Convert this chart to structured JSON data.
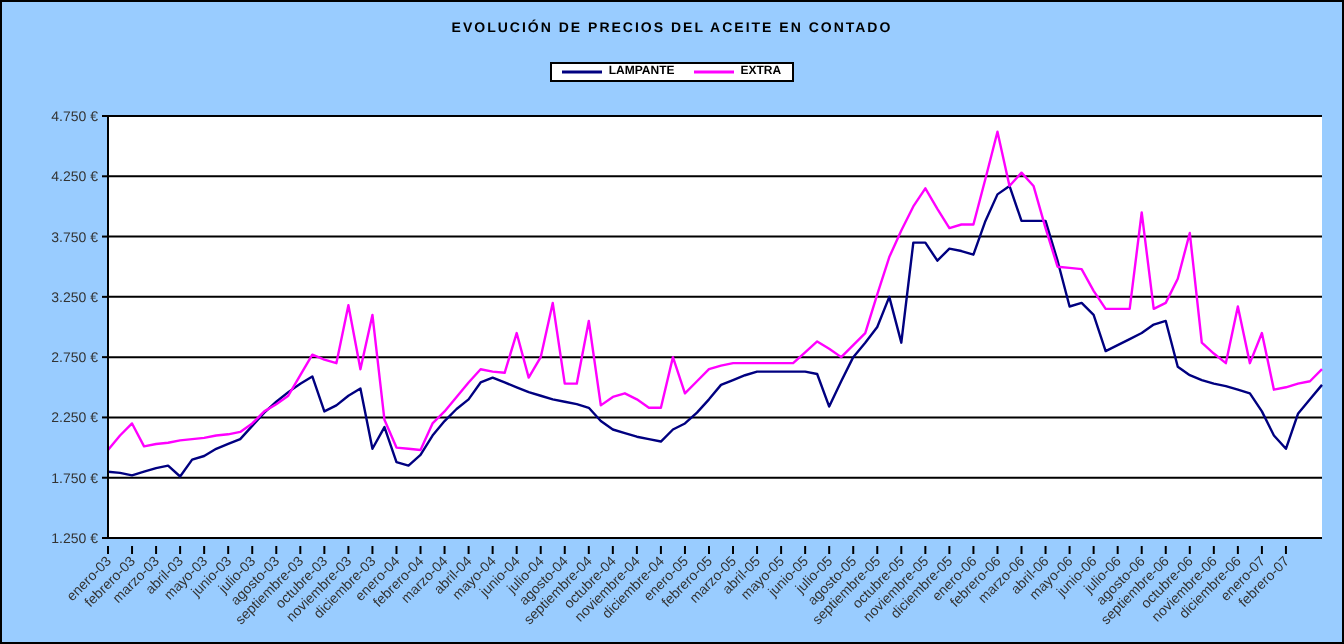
{
  "chart_data": {
    "type": "line",
    "title": "EVOLUCIÓN DE PRECIOS  DEL ACEITE EN CONTADO",
    "categories": [
      "enero-03",
      null,
      "febrero-03",
      null,
      "marzo-03",
      null,
      "abril-03",
      null,
      "mayo-03",
      null,
      "junio-03",
      null,
      "julio-03",
      null,
      "agosto-03",
      null,
      "septiembre-03",
      null,
      "octubre-03",
      null,
      "noviembre-03",
      null,
      "diciembre-03",
      null,
      "enero-04",
      null,
      "febrero-04",
      null,
      "marzo-04",
      null,
      "abril-04",
      null,
      "mayo-04",
      null,
      "junio-04",
      null,
      "julio-04",
      null,
      "agosto-04",
      null,
      "septiembre-04",
      null,
      "octubre-04",
      null,
      "noviembre-04",
      null,
      "diciembre-04",
      null,
      "enero-05",
      null,
      "febrero-05",
      null,
      "marzo-05",
      null,
      "abril-05",
      null,
      "mayo-05",
      null,
      "junio-05",
      null,
      "julio-05",
      null,
      "agosto-05",
      null,
      "septiembre-05",
      null,
      "octubre-05",
      null,
      "noviembre-05",
      null,
      "diciembre-05",
      null,
      "enero-06",
      null,
      "febrero-06",
      null,
      "marzo-06",
      null,
      "abril-06",
      null,
      "mayo-06",
      null,
      "junio-06",
      null,
      "julio-06",
      null,
      "agosto-06",
      null,
      "septiembre-06",
      null,
      "octubre-06",
      null,
      "noviembre-06",
      null,
      "diciembre-06",
      null,
      "enero-07",
      null,
      "febrero-07",
      null,
      null,
      null
    ],
    "ylim": [
      1250,
      4750
    ],
    "yticks": [
      {
        "value": 1250,
        "label": "1.250 €"
      },
      {
        "value": 1750,
        "label": "1.750 €"
      },
      {
        "value": 2250,
        "label": "2.250 €"
      },
      {
        "value": 2750,
        "label": "2.750 €"
      },
      {
        "value": 3250,
        "label": "3.250 €"
      },
      {
        "value": 3750,
        "label": "3.750 €"
      },
      {
        "value": 4250,
        "label": "4.250 €"
      },
      {
        "value": 4750,
        "label": "4.750 €"
      }
    ],
    "grid": "y",
    "legend": "top",
    "marker": "none",
    "line_style": "solid",
    "series": [
      {
        "name": "LAMPANTE",
        "color": "#000080",
        "values": [
          1800,
          1790,
          1770,
          1800,
          1830,
          1850,
          1760,
          1900,
          1930,
          1990,
          2030,
          2070,
          2180,
          2290,
          2380,
          2460,
          2530,
          2590,
          2300,
          2350,
          2430,
          2490,
          1990,
          2170,
          1880,
          1850,
          1940,
          2100,
          2220,
          2320,
          2400,
          2540,
          2580,
          2540,
          2500,
          2460,
          2430,
          2400,
          2380,
          2360,
          2330,
          2220,
          2150,
          2120,
          2090,
          2070,
          2050,
          2150,
          2200,
          2290,
          2400,
          2520,
          2560,
          2600,
          2630,
          2630,
          2630,
          2630,
          2630,
          2610,
          2340,
          2550,
          2750,
          2870,
          3000,
          3250,
          2870,
          3700,
          3700,
          3550,
          3650,
          3630,
          3600,
          3880,
          4100,
          4170,
          3880,
          3880,
          3880,
          3550,
          3170,
          3200,
          3100,
          2800,
          2850,
          2900,
          2950,
          3020,
          3050,
          2670,
          2600,
          2560,
          2530,
          2510,
          2480,
          2450,
          2300,
          2100,
          1990,
          2280,
          2400,
          2520
        ]
      },
      {
        "name": "EXTRA",
        "color": "#ff00ff",
        "values": [
          1980,
          2100,
          2200,
          2010,
          2030,
          2040,
          2060,
          2070,
          2080,
          2100,
          2110,
          2130,
          2200,
          2300,
          2360,
          2430,
          2600,
          2770,
          2730,
          2700,
          3180,
          2650,
          3100,
          2230,
          2000,
          1990,
          1980,
          2200,
          2300,
          2420,
          2540,
          2650,
          2630,
          2620,
          2950,
          2580,
          2750,
          3200,
          2530,
          2530,
          3050,
          2350,
          2420,
          2450,
          2400,
          2330,
          2330,
          2750,
          2450,
          2550,
          2650,
          2680,
          2700,
          2700,
          2700,
          2700,
          2700,
          2700,
          2790,
          2880,
          2820,
          2750,
          2850,
          2950,
          3270,
          3580,
          3800,
          4000,
          4150,
          3980,
          3820,
          3850,
          3850,
          4230,
          4620,
          4170,
          4280,
          4170,
          3820,
          3500,
          3490,
          3480,
          3300,
          3150,
          3150,
          3150,
          3950,
          3150,
          3200,
          3400,
          3780,
          2870,
          2780,
          2700,
          3170,
          2700,
          2950,
          2480,
          2500,
          2530,
          2550,
          2650
        ]
      }
    ]
  }
}
